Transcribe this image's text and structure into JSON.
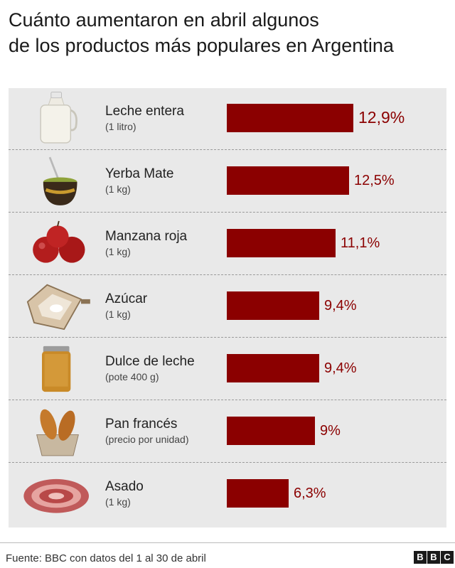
{
  "title_line1": "Cuánto aumentaron en abril algunos",
  "title_line2": "de los productos más populares en Argentina",
  "chart_data": {
    "type": "bar",
    "orientation": "horizontal",
    "title": "Cuánto aumentaron en abril algunos de los productos más populares en Argentina",
    "bar_color": "#8b0000",
    "items": [
      {
        "label": "Leche entera",
        "unit": "(1 litro)",
        "value": 12.9,
        "value_label": "12,9%",
        "image": "milk-jug-icon"
      },
      {
        "label": "Yerba Mate",
        "unit": "(1 kg)",
        "value": 12.5,
        "value_label": "12,5%",
        "image": "mate-gourd-icon"
      },
      {
        "label": "Manzana roja",
        "unit": "(1 kg)",
        "value": 11.1,
        "value_label": "11,1%",
        "image": "red-apples-icon"
      },
      {
        "label": "Azúcar",
        "unit": "(1 kg)",
        "value": 9.4,
        "value_label": "9,4%",
        "image": "sugar-pile-icon"
      },
      {
        "label": "Dulce de leche",
        "unit": "(pote 400 g)",
        "value": 9.4,
        "value_label": "9,4%",
        "image": "jar-icon"
      },
      {
        "label": "Pan francés",
        "unit": "(precio por unidad)",
        "value": 9,
        "value_label": "9%",
        "image": "bread-basket-icon"
      },
      {
        "label": "Asado",
        "unit": "(1 kg)",
        "value": 6.3,
        "value_label": "6,3%",
        "image": "meat-icon"
      }
    ]
  },
  "footer": {
    "source": "Fuente: BBC con datos del 1 al 30 de abril",
    "logo_letters": [
      "B",
      "B",
      "C"
    ]
  }
}
